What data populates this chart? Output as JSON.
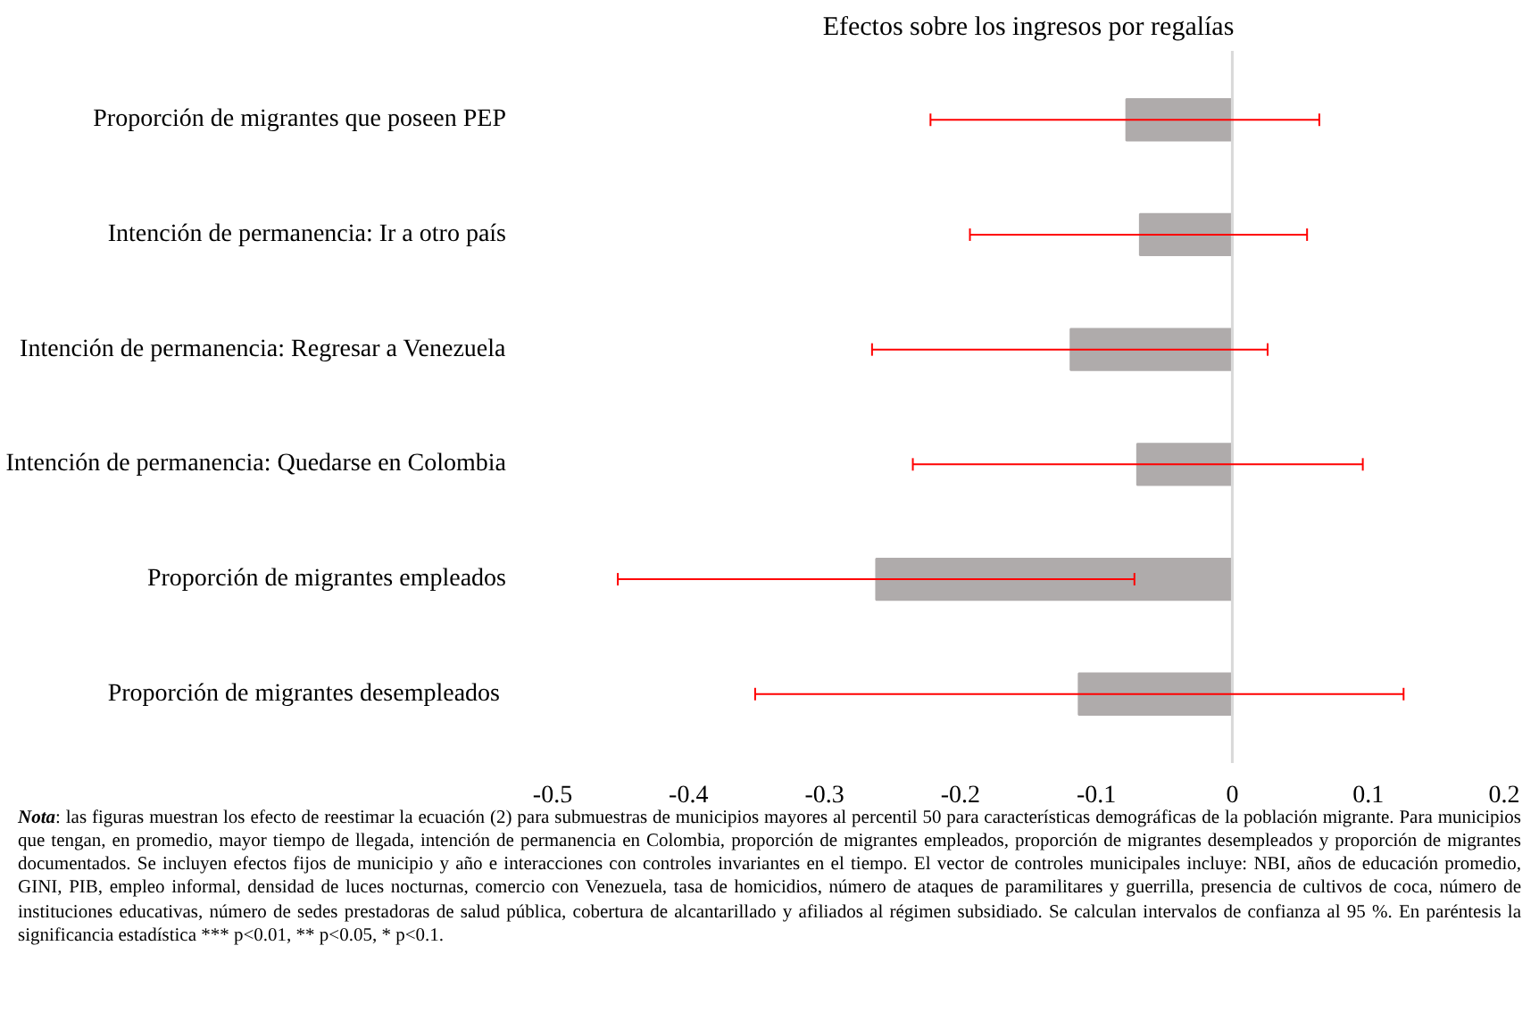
{
  "chart_data": {
    "type": "bar",
    "orientation": "horizontal",
    "title": "Efectos sobre los ingresos por regalías",
    "categories": [
      "Proporción de migrantes que poseen PEP",
      "Intención de permanencia: Ir a otro país",
      "Intención de permanencia: Regresar a Venezuela",
      "Intención de permanencia: Quedarse en Colombia",
      "Proporción de migrantes empleados",
      "Proporción de migrantes  desempleados"
    ],
    "values": [
      -0.078,
      -0.068,
      -0.119,
      -0.07,
      -0.262,
      -0.113
    ],
    "errors": [
      [
        -0.222,
        0.064
      ],
      [
        -0.193,
        0.055
      ],
      [
        -0.265,
        0.026
      ],
      [
        -0.235,
        0.096
      ],
      [
        -0.452,
        -0.072
      ],
      [
        -0.351,
        0.126
      ]
    ],
    "color": "#afabab",
    "xlim": [
      -0.5,
      0.2
    ],
    "xticks": [
      -0.5,
      -0.4,
      -0.3,
      -0.2,
      -0.1,
      0,
      0.1,
      0.2
    ],
    "grid": false,
    "ref_lines": [
      {
        "axis": "x",
        "value": 0,
        "color": "#d9d9d9"
      }
    ],
    "annotations": [
      "Nota: las figuras muestran los efecto de reestimar la ecuación (2) para submuestras de municipios mayores al percentil 50 para características demográficas de la población migrante. Para municipios que tengan, en promedio, mayor tiempo de llegada, intención de permanencia en Colombia, proporción de migrantes empleados, proporción de migrantes desempleados y proporción de migrantes documentados. Se incluyen efectos fijos de municipio y año e interacciones con controles invariantes en el tiempo. El vector de controles municipales incluye: NBI,  años de educación promedio, GINI, PIB, empleo informal, densidad de luces nocturnas, comercio con Venezuela, tasa de homicidios, número de ataques de paramilitares y guerrilla, presencia de cultivos de coca, número de instituciones educativas,  número de sedes prestadoras de salud pública, cobertura de alcantarillado y afiliados al régimen subsidiado. Se calculan intervalos de confianza al 95 %. En paréntesis la significancia estadística *** p<0.01, ** p<0.05, * p<0.1."
    ]
  }
}
